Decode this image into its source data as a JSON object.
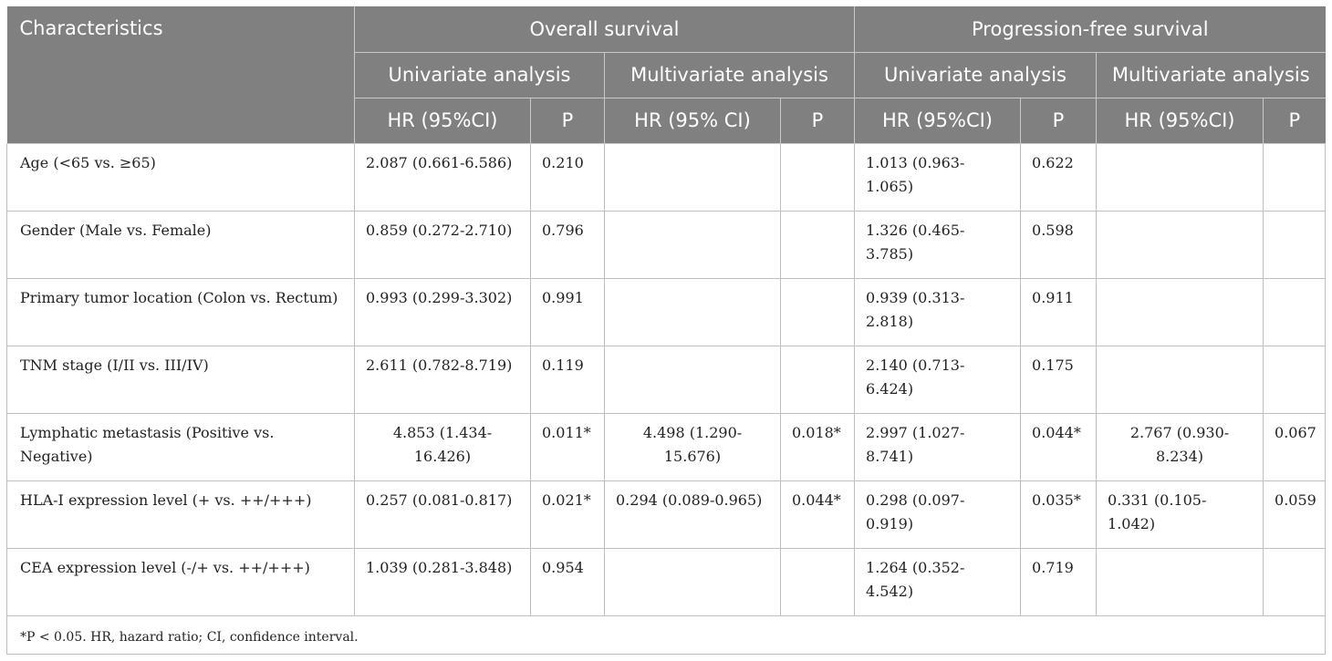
{
  "header": {
    "characteristics": "Characteristics",
    "overall_survival": "Overall survival",
    "pfs": "Progression-free survival",
    "univariate": "Univariate analysis",
    "multivariate": "Multivariate analysis",
    "hr_ci_os_uni": "HR (95%CI)",
    "hr_ci_os_multi": "HR (95% CI)",
    "hr_ci_pfs_uni": "HR (95%CI)",
    "hr_ci_pfs_multi": "HR (95%CI)",
    "p": "P"
  },
  "rows": [
    {
      "label": "Age (<65 vs. ≥65)",
      "os_uni_hr": "2.087 (0.661-6.586)",
      "os_uni_p": "0.210",
      "os_multi_hr": "",
      "os_multi_p": "",
      "pfs_uni_hr": "1.013 (0.963-1.065)",
      "pfs_uni_p": "0.622",
      "pfs_multi_hr": "",
      "pfs_multi_p": ""
    },
    {
      "label": "Gender (Male vs. Female)",
      "os_uni_hr": "0.859 (0.272-2.710)",
      "os_uni_p": "0.796",
      "os_multi_hr": "",
      "os_multi_p": "",
      "pfs_uni_hr": "1.326 (0.465-3.785)",
      "pfs_uni_p": "0.598",
      "pfs_multi_hr": "",
      "pfs_multi_p": ""
    },
    {
      "label": "Primary tumor location (Colon vs. Rectum)",
      "os_uni_hr": "0.993 (0.299-3.302)",
      "os_uni_p": "0.991",
      "os_multi_hr": "",
      "os_multi_p": "",
      "pfs_uni_hr": "0.939 (0.313-2.818)",
      "pfs_uni_p": "0.911",
      "pfs_multi_hr": "",
      "pfs_multi_p": ""
    },
    {
      "label": "TNM stage (I/II vs. III/IV)",
      "os_uni_hr": "2.611 (0.782-8.719)",
      "os_uni_p": "0.119",
      "os_multi_hr": "",
      "os_multi_p": "",
      "pfs_uni_hr": "2.140 (0.713-6.424)",
      "pfs_uni_p": "0.175",
      "pfs_multi_hr": "",
      "pfs_multi_p": ""
    },
    {
      "label": "Lymphatic metastasis (Positive vs. Negative)",
      "os_uni_hr": "4.853 (1.434-16.426)",
      "os_uni_p": "0.011*",
      "os_multi_hr": "4.498 (1.290-15.676)",
      "os_multi_p": "0.018*",
      "pfs_uni_hr": "2.997 (1.027-8.741)",
      "pfs_uni_p": "0.044*",
      "pfs_multi_hr": "2.767 (0.930-8.234)",
      "pfs_multi_p": "0.067"
    },
    {
      "label": "HLA-I expression level (+ vs. ++/+++)",
      "os_uni_hr": "0.257 (0.081-0.817)",
      "os_uni_p": "0.021*",
      "os_multi_hr": "0.294 (0.089-0.965)",
      "os_multi_p": "0.044*",
      "pfs_uni_hr": "0.298 (0.097-0.919)",
      "pfs_uni_p": "0.035*",
      "pfs_multi_hr": "0.331 (0.105-1.042)",
      "pfs_multi_p": "0.059"
    },
    {
      "label": "CEA expression level (-/+ vs. ++/+++)",
      "os_uni_hr": "1.039 (0.281-3.848)",
      "os_uni_p": "0.954",
      "os_multi_hr": "",
      "os_multi_p": "",
      "pfs_uni_hr": "1.264 (0.352-4.542)",
      "pfs_uni_p": "0.719",
      "pfs_multi_hr": "",
      "pfs_multi_p": ""
    }
  ],
  "footnote": "*P < 0.05. HR, hazard ratio; CI, confidence interval."
}
